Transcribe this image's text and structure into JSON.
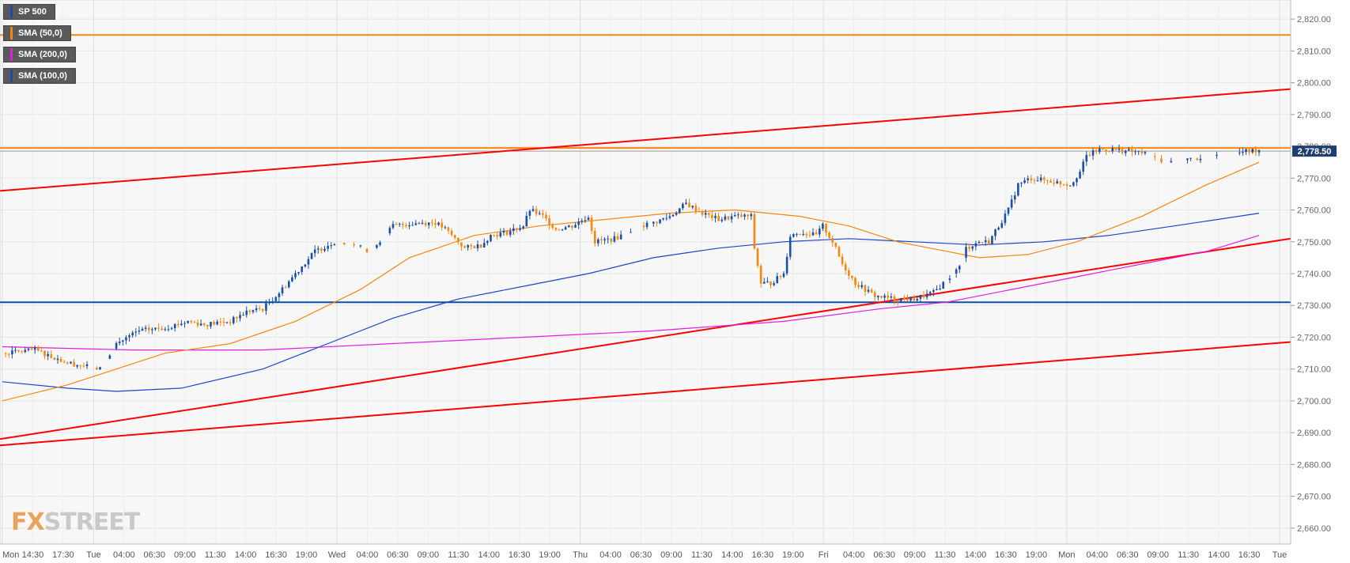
{
  "legend": {
    "symbol": "SP 500",
    "sma50": "SMA (50,0)",
    "sma200": "SMA (200,0)",
    "sma100": "SMA (100,0)"
  },
  "legend_colors": {
    "symbol": "#1c4ca3",
    "sma50": "#f5870e",
    "sma200": "#e01ee0",
    "sma100": "#1c4ca3"
  },
  "logo": {
    "fx": "FX",
    "street": "STREET"
  },
  "colors": {
    "bull": "#1b4fa8",
    "bear": "#f5870e",
    "sma50": "#f5870e",
    "sma100": "#1b45c9",
    "sma200": "#e01ee0",
    "trend": "#ff0000",
    "resistance": "#f5870e",
    "support": "#0b4fa8",
    "price_tag_bg": "#1f3f6e"
  },
  "chart_data": {
    "type": "candlestick",
    "symbol": "SP 500",
    "ylim": [
      2655,
      2826
    ],
    "y_ticks": [
      "2,660.00",
      "2,670.00",
      "2,680.00",
      "2,690.00",
      "2,700.00",
      "2,710.00",
      "2,720.00",
      "2,730.00",
      "2,740.00",
      "2,750.00",
      "2,760.00",
      "2,770.00",
      "2,780.00",
      "2,790.00",
      "2,800.00",
      "2,810.00",
      "2,820.00"
    ],
    "x_ticks": [
      "Mon",
      "14:30",
      "17:30",
      "Tue",
      "04:00",
      "06:30",
      "09:00",
      "11:30",
      "14:00",
      "16:30",
      "19:00",
      "Wed",
      "04:00",
      "06:30",
      "09:00",
      "11:30",
      "14:00",
      "16:30",
      "19:00",
      "Thu",
      "04:00",
      "06:30",
      "09:00",
      "11:30",
      "14:00",
      "16:30",
      "19:00",
      "Fri",
      "04:00",
      "06:30",
      "09:00",
      "11:30",
      "14:00",
      "16:30",
      "19:00",
      "Mon",
      "04:00",
      "06:30",
      "09:00",
      "11:30",
      "14:00",
      "16:30",
      "Tue"
    ],
    "current_price": 2778.5,
    "current_price_label": "2,778.50",
    "horizontal_levels": [
      {
        "name": "resistance-top",
        "value": 2815,
        "color": "orange"
      },
      {
        "name": "resistance",
        "value": 2779.5,
        "color": "orange"
      },
      {
        "name": "support",
        "value": 2731,
        "color": "blue"
      }
    ],
    "trendlines": [
      {
        "name": "channel-top",
        "from": 2766,
        "to": 2798
      },
      {
        "name": "channel-mid",
        "from": 2688,
        "to": 2751
      },
      {
        "name": "channel-bottom",
        "from": 2686,
        "to": 2718.5
      }
    ],
    "key_points": [
      [
        0,
        2715
      ],
      [
        10,
        2716
      ],
      [
        20,
        2712
      ],
      [
        30,
        2710
      ],
      [
        35,
        2718
      ],
      [
        42,
        2722
      ],
      [
        50,
        2723
      ],
      [
        57,
        2725
      ],
      [
        62,
        2724
      ],
      [
        70,
        2725
      ],
      [
        75,
        2728
      ],
      [
        80,
        2729
      ],
      [
        85,
        2734
      ],
      [
        90,
        2740
      ],
      [
        96,
        2747
      ],
      [
        102,
        2750
      ],
      [
        108,
        2749
      ],
      [
        113,
        2747
      ],
      [
        120,
        2755
      ],
      [
        128,
        2756
      ],
      [
        133,
        2756
      ],
      [
        136,
        2754
      ],
      [
        138,
        2752
      ],
      [
        142,
        2748
      ],
      [
        147,
        2749
      ],
      [
        150,
        2752
      ],
      [
        155,
        2753
      ],
      [
        160,
        2755
      ],
      [
        162,
        2760
      ],
      [
        166,
        2758
      ],
      [
        170,
        2754
      ],
      [
        175,
        2755
      ],
      [
        180,
        2758
      ],
      [
        182,
        2750
      ],
      [
        188,
        2751
      ],
      [
        192,
        2753
      ],
      [
        196,
        2755
      ],
      [
        200,
        2756
      ],
      [
        205,
        2758
      ],
      [
        210,
        2762
      ],
      [
        215,
        2759
      ],
      [
        220,
        2757
      ],
      [
        225,
        2758
      ],
      [
        230,
        2758
      ],
      [
        231,
        2748
      ],
      [
        233,
        2737
      ],
      [
        236,
        2737
      ],
      [
        240,
        2740
      ],
      [
        242,
        2752
      ],
      [
        245,
        2753
      ],
      [
        250,
        2752
      ],
      [
        252,
        2755
      ],
      [
        255,
        2750
      ],
      [
        258,
        2743
      ],
      [
        262,
        2737
      ],
      [
        268,
        2733
      ],
      [
        274,
        2732
      ],
      [
        280,
        2732
      ],
      [
        286,
        2734
      ],
      [
        290,
        2738
      ],
      [
        294,
        2742
      ],
      [
        296,
        2748
      ],
      [
        300,
        2750
      ],
      [
        303,
        2750
      ],
      [
        306,
        2755
      ],
      [
        309,
        2760
      ],
      [
        312,
        2768
      ],
      [
        316,
        2770
      ],
      [
        322,
        2769
      ],
      [
        328,
        2768
      ],
      [
        331,
        2772
      ],
      [
        333,
        2777
      ],
      [
        337,
        2779
      ],
      [
        341,
        2779
      ],
      [
        350,
        2778
      ],
      [
        358,
        2775
      ],
      [
        365,
        2776
      ],
      [
        372,
        2777
      ],
      [
        380,
        2778
      ],
      [
        386,
        2779
      ]
    ],
    "sma50": [
      [
        0,
        2700
      ],
      [
        20,
        2705
      ],
      [
        35,
        2710
      ],
      [
        50,
        2715
      ],
      [
        70,
        2718
      ],
      [
        90,
        2725
      ],
      [
        110,
        2735
      ],
      [
        125,
        2745
      ],
      [
        145,
        2752
      ],
      [
        165,
        2755
      ],
      [
        185,
        2757
      ],
      [
        205,
        2759
      ],
      [
        225,
        2760
      ],
      [
        245,
        2758
      ],
      [
        260,
        2755
      ],
      [
        275,
        2750
      ],
      [
        290,
        2747
      ],
      [
        300,
        2745
      ],
      [
        315,
        2746
      ],
      [
        330,
        2750
      ],
      [
        350,
        2758
      ],
      [
        370,
        2768
      ],
      [
        386,
        2775
      ]
    ],
    "sma100": [
      [
        0,
        2706
      ],
      [
        20,
        2704
      ],
      [
        35,
        2703
      ],
      [
        55,
        2704
      ],
      [
        80,
        2710
      ],
      [
        100,
        2718
      ],
      [
        120,
        2726
      ],
      [
        140,
        2732
      ],
      [
        160,
        2736
      ],
      [
        180,
        2740
      ],
      [
        200,
        2745
      ],
      [
        220,
        2748
      ],
      [
        240,
        2750
      ],
      [
        260,
        2751
      ],
      [
        280,
        2750
      ],
      [
        300,
        2749
      ],
      [
        320,
        2750
      ],
      [
        340,
        2752
      ],
      [
        360,
        2755
      ],
      [
        386,
        2759
      ]
    ],
    "sma200": [
      [
        0,
        2717
      ],
      [
        40,
        2716
      ],
      [
        80,
        2716
      ],
      [
        120,
        2718
      ],
      [
        160,
        2720
      ],
      [
        200,
        2722
      ],
      [
        240,
        2725
      ],
      [
        270,
        2729
      ],
      [
        290,
        2731
      ],
      [
        310,
        2735
      ],
      [
        330,
        2739
      ],
      [
        350,
        2743
      ],
      [
        370,
        2747
      ],
      [
        386,
        2752
      ]
    ]
  }
}
